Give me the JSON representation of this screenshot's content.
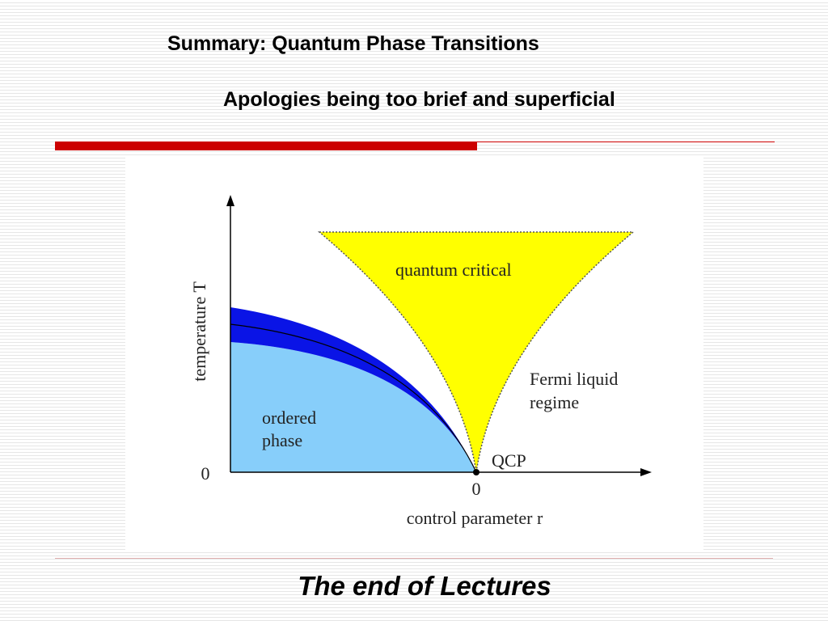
{
  "header": {
    "title": "Summary: Quantum Phase Transitions",
    "subtitle": "Apologies being too brief and superficial"
  },
  "diagram": {
    "y_axis_label": "temperature T",
    "y_origin": "0",
    "x_origin": "0",
    "x_axis_label": "control parameter r",
    "regions": [
      {
        "lines": [
          "quantum critical"
        ]
      },
      {
        "lines": [
          "Fermi liquid",
          "regime"
        ]
      },
      {
        "lines": [
          "ordered",
          "phase"
        ]
      }
    ],
    "point_label": "QCP"
  },
  "footer": {
    "text": "The end of Lectures"
  }
}
